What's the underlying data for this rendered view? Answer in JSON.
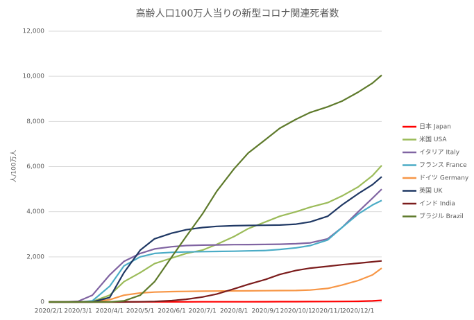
{
  "chart_data": {
    "type": "line",
    "title": "高齢人口100万人当りの新型コロナ関連死者数",
    "y_label": "人/100万人",
    "x": [
      "2020/2/1",
      "2020/2/15",
      "2020/3/1",
      "2020/3/15",
      "2020/4/1",
      "2020/4/15",
      "2020/5/1",
      "2020/5/15",
      "2020/6/1",
      "2020/6/15",
      "2020/7/1",
      "2020/7/15",
      "2020/8/1",
      "2020/8/15",
      "2020/9/1",
      "2020/9/15",
      "2020/10/1",
      "2020/10/15",
      "2020/11/1",
      "2020/11/15",
      "2020/12/1",
      "2020/12/15",
      "2020/12/24"
    ],
    "xlim": [
      "2020/2/1",
      "2020/12/24"
    ],
    "xticks": [
      "2020/2/1",
      "2020/3/1",
      "2020/4/1",
      "2020/5/1",
      "2020/6/1",
      "2020/7/1",
      "2020/8/1",
      "2020/9/1",
      "2020/10/1",
      "2020/11/1",
      "2020/12/1"
    ],
    "ylim": [
      0,
      12000
    ],
    "yticks": [
      0,
      {
        "value": 2000,
        "label": "2,000"
      },
      {
        "value": 4000,
        "label": "4,000"
      },
      {
        "value": 6000,
        "label": "6,000"
      },
      {
        "value": 8000,
        "label": "8,000"
      },
      {
        "value": 10000,
        "label": "10,000"
      },
      {
        "value": 12000,
        "label": "12,000"
      }
    ],
    "grid": true,
    "legend": "right",
    "series": [
      {
        "name": "日本 Japan",
        "color": "#ff0000",
        "values": [
          0,
          0,
          0,
          0,
          1,
          3,
          5,
          6,
          7,
          7,
          8,
          8,
          9,
          10,
          12,
          14,
          16,
          18,
          20,
          24,
          32,
          50,
          75
        ]
      },
      {
        "name": "米国 USA",
        "color": "#9bbb59",
        "values": [
          0,
          0,
          0,
          20,
          300,
          900,
          1300,
          1700,
          1950,
          2150,
          2300,
          2550,
          2900,
          3250,
          3550,
          3800,
          4000,
          4200,
          4400,
          4700,
          5100,
          5600,
          6050
        ]
      },
      {
        "name": "イタリア Italy",
        "color": "#8064a2",
        "values": [
          0,
          0,
          30,
          300,
          1200,
          1800,
          2150,
          2350,
          2450,
          2500,
          2520,
          2530,
          2540,
          2545,
          2550,
          2560,
          2580,
          2620,
          2800,
          3300,
          4000,
          4600,
          5000
        ]
      },
      {
        "name": "フランス France",
        "color": "#4bacc6",
        "values": [
          0,
          0,
          0,
          50,
          700,
          1600,
          2000,
          2150,
          2200,
          2220,
          2230,
          2240,
          2250,
          2265,
          2280,
          2330,
          2400,
          2500,
          2750,
          3300,
          3900,
          4300,
          4500
        ]
      },
      {
        "name": "ドイツ Germany",
        "color": "#f79646",
        "values": [
          0,
          0,
          0,
          10,
          100,
          300,
          400,
          440,
          460,
          470,
          480,
          485,
          490,
          495,
          500,
          505,
          510,
          530,
          600,
          750,
          950,
          1200,
          1500
        ]
      },
      {
        "name": "英国 UK",
        "color": "#1f3864",
        "values": [
          0,
          0,
          0,
          0,
          200,
          1300,
          2300,
          2800,
          3050,
          3200,
          3300,
          3350,
          3380,
          3390,
          3400,
          3410,
          3450,
          3550,
          3800,
          4300,
          4800,
          5200,
          5550
        ]
      },
      {
        "name": "インド India",
        "color": "#7b1c1c",
        "values": [
          0,
          0,
          0,
          0,
          0,
          0,
          10,
          25,
          60,
          120,
          220,
          350,
          580,
          780,
          1000,
          1220,
          1400,
          1500,
          1580,
          1650,
          1720,
          1780,
          1820
        ]
      },
      {
        "name": "ブラジル Brazil",
        "color": "#5e7a2b",
        "values": [
          0,
          0,
          0,
          0,
          0,
          50,
          300,
          900,
          2000,
          2900,
          3900,
          4900,
          5900,
          6600,
          7200,
          7700,
          8100,
          8400,
          8650,
          8900,
          9300,
          9700,
          10050
        ]
      }
    ]
  }
}
